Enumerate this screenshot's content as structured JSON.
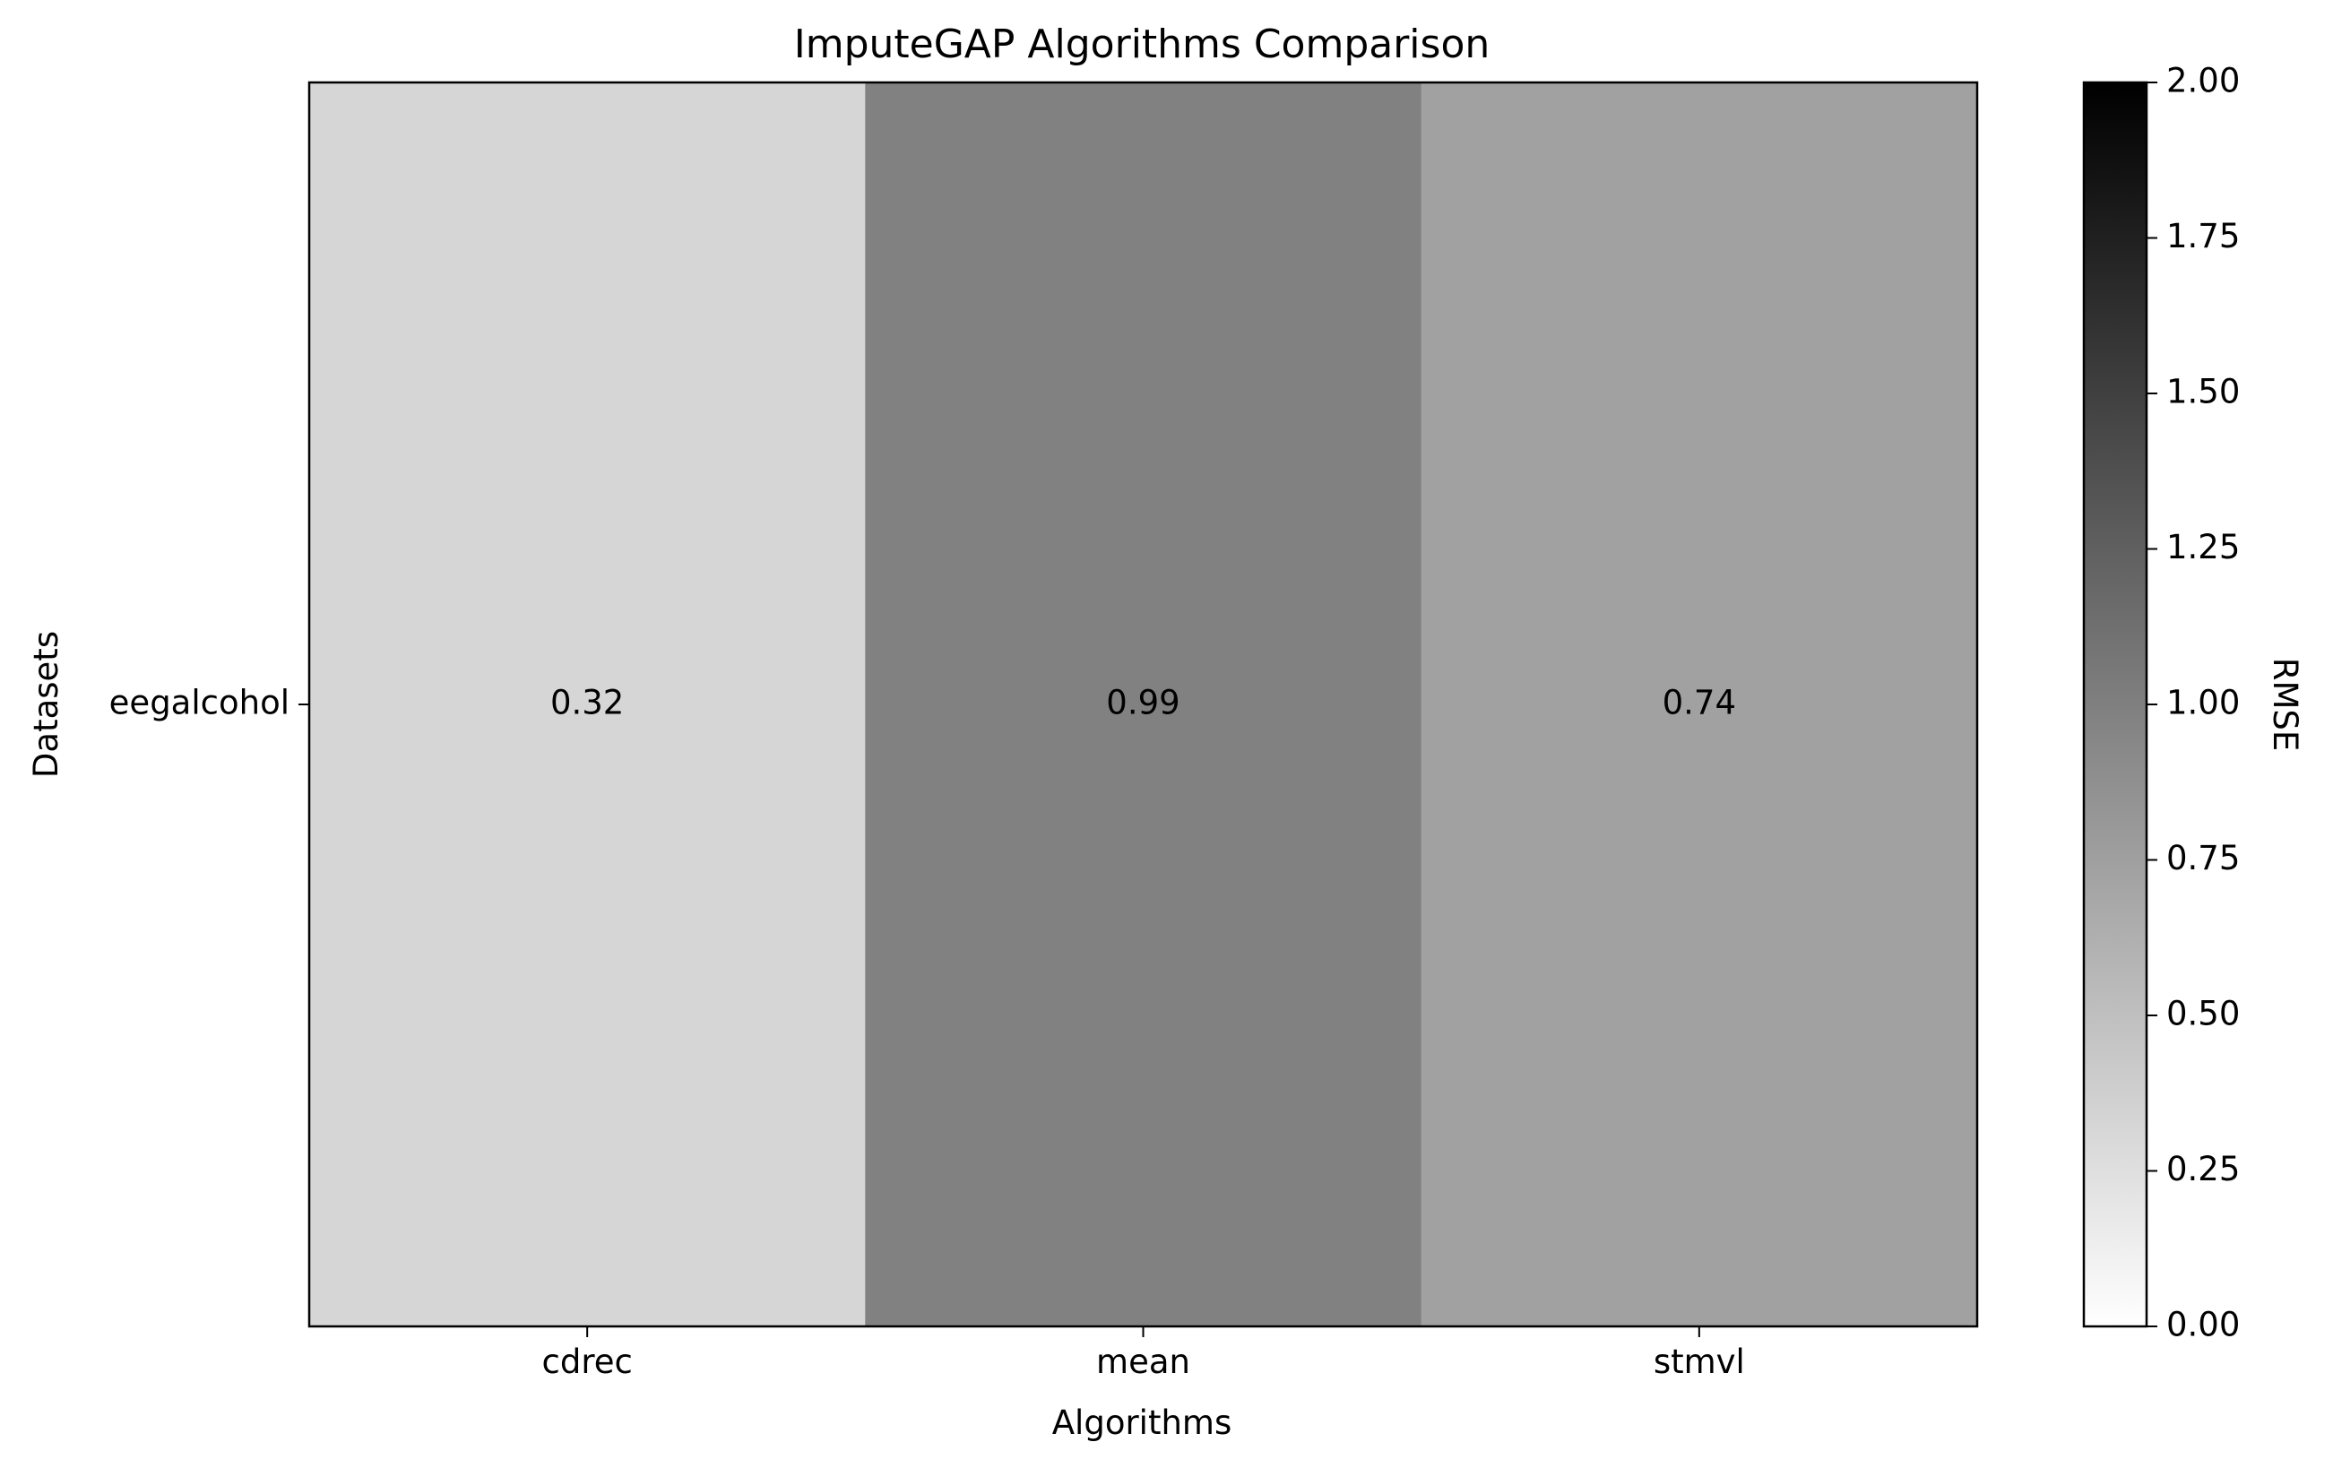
{
  "chart_data": {
    "type": "heatmap",
    "title": "ImputeGAP Algorithms Comparison",
    "xlabel": "Algorithms",
    "ylabel": "Datasets",
    "x_categories": [
      "cdrec",
      "mean",
      "stmvl"
    ],
    "y_categories": [
      "eegalcohol"
    ],
    "values": [
      [
        0.32,
        0.99,
        0.74
      ]
    ],
    "value_labels": [
      [
        "0.32",
        "0.99",
        "0.74"
      ]
    ],
    "colorbar": {
      "label": "RMSE",
      "range": [
        0,
        2
      ],
      "ticks": [
        "0.00",
        "0.25",
        "0.50",
        "0.75",
        "1.00",
        "1.25",
        "1.50",
        "1.75",
        "2.00"
      ],
      "colormap": "Greys",
      "low_color": "#ffffff",
      "high_color": "#000000"
    },
    "grid": false
  }
}
